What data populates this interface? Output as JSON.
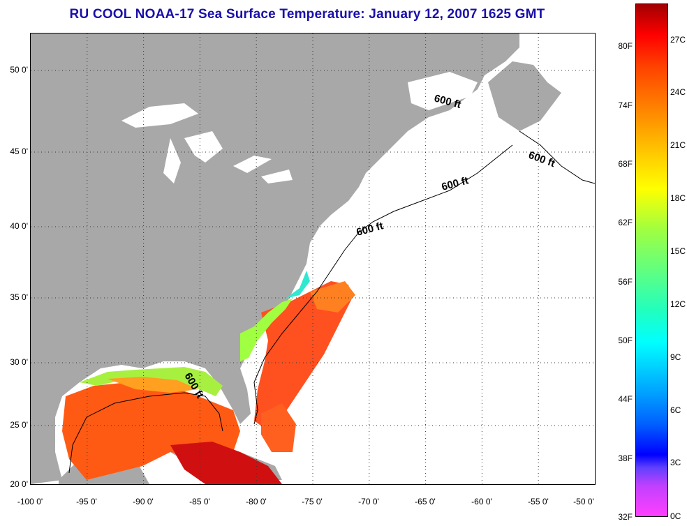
{
  "title": "RU COOL  NOAA-17  Sea Surface Temperature:  January 12, 2007 1625 GMT",
  "x_ticks": [
    "-100 0'",
    "-95 0'",
    "-90 0'",
    "-85 0'",
    "-80 0'",
    "-75 0'",
    "-70 0'",
    "-65 0'",
    "-60 0'",
    "-55 0'",
    "-50 0'"
  ],
  "y_ticks": [
    "50 0'",
    "45 0'",
    "40 0'",
    "35 0'",
    "30 0'",
    "25 0'",
    "20 0'"
  ],
  "contour_label": "600 ft",
  "colorbar": {
    "fahrenheit": [
      "80F",
      "74F",
      "68F",
      "62F",
      "56F",
      "50F",
      "44F",
      "38F",
      "32F"
    ],
    "celsius": [
      "27C",
      "24C",
      "21C",
      "18C",
      "15C",
      "12C",
      "9C",
      "6C",
      "3C",
      "0C"
    ]
  },
  "colors": {
    "land": "#a8a8a8",
    "title": "#1a10a8",
    "warm": "#ff4010",
    "cool": "#a0ff40"
  }
}
